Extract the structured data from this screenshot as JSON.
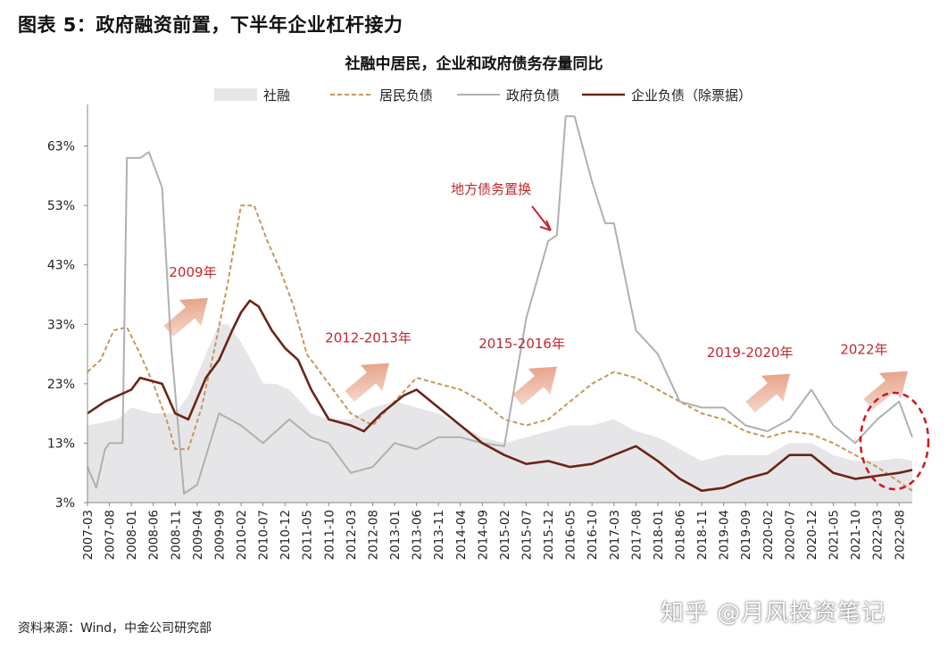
{
  "figure_title": "图表 5：政府融资前置，下半年企业杠杆接力",
  "source": "资料来源：Wind，中金公司研究部",
  "watermark": "知乎 @月风投资笔记",
  "colors": {
    "area": "#e6e6e9",
    "household": "#c8975a",
    "government": "#b0b0b0",
    "corporate": "#6b2418",
    "annotation": "#c0282d",
    "arrow": "#e08c6c",
    "circle": "#d0161b"
  },
  "chart_data": {
    "type": "line",
    "title": "社融中居民，企业和政府债务存量同比",
    "ylim": [
      3,
      70
    ],
    "y_ticks": [
      3,
      13,
      23,
      33,
      43,
      53,
      63
    ],
    "y_tick_labels": [
      "3%",
      "13%",
      "23%",
      "33%",
      "43%",
      "53%",
      "63%"
    ],
    "x_tick_labels": [
      "2007-03",
      "2007-08",
      "2008-01",
      "2008-06",
      "2008-11",
      "2009-04",
      "2009-09",
      "2010-02",
      "2010-07",
      "2010-12",
      "2011-05",
      "2011-10",
      "2012-03",
      "2012-08",
      "2013-01",
      "2013-06",
      "2013-11",
      "2014-04",
      "2014-09",
      "2015-02",
      "2015-07",
      "2015-12",
      "2016-05",
      "2016-10",
      "2017-03",
      "2017-08",
      "2018-01",
      "2018-06",
      "2018-11",
      "2019-04",
      "2019-09",
      "2020-02",
      "2020-07",
      "2020-12",
      "2021-05",
      "2021-10",
      "2022-03",
      "2022-08"
    ],
    "x_start": "2007-03",
    "x_end": "2022-11",
    "legend_position": "top",
    "series": [
      {
        "name": "社融",
        "style": "area",
        "points": [
          [
            "2007-03",
            16
          ],
          [
            "2007-10",
            17
          ],
          [
            "2008-01",
            19
          ],
          [
            "2008-06",
            18
          ],
          [
            "2008-11",
            18
          ],
          [
            "2009-02",
            21
          ],
          [
            "2009-06",
            28
          ],
          [
            "2009-09",
            33
          ],
          [
            "2009-11",
            33
          ],
          [
            "2010-02",
            30
          ],
          [
            "2010-05",
            26
          ],
          [
            "2010-07",
            23
          ],
          [
            "2010-10",
            23
          ],
          [
            "2011-01",
            22
          ],
          [
            "2011-06",
            18
          ],
          [
            "2011-10",
            17
          ],
          [
            "2012-03",
            17
          ],
          [
            "2012-08",
            19
          ],
          [
            "2013-01",
            20
          ],
          [
            "2013-06",
            19
          ],
          [
            "2013-11",
            18
          ],
          [
            "2014-04",
            16
          ],
          [
            "2014-09",
            14
          ],
          [
            "2015-02",
            13
          ],
          [
            "2015-07",
            14
          ],
          [
            "2015-12",
            15
          ],
          [
            "2016-05",
            16
          ],
          [
            "2016-10",
            16
          ],
          [
            "2017-03",
            17
          ],
          [
            "2017-08",
            15
          ],
          [
            "2018-01",
            14
          ],
          [
            "2018-06",
            12
          ],
          [
            "2018-11",
            10
          ],
          [
            "2019-04",
            11
          ],
          [
            "2019-09",
            11
          ],
          [
            "2020-02",
            11
          ],
          [
            "2020-07",
            13
          ],
          [
            "2020-12",
            13
          ],
          [
            "2021-05",
            11
          ],
          [
            "2021-10",
            10
          ],
          [
            "2022-03",
            10
          ],
          [
            "2022-08",
            10.5
          ],
          [
            "2022-11",
            10
          ]
        ]
      },
      {
        "name": "居民负债",
        "style": "dashed",
        "points": [
          [
            "2007-03",
            25
          ],
          [
            "2007-06",
            27
          ],
          [
            "2007-09",
            32
          ],
          [
            "2007-12",
            32.5
          ],
          [
            "2008-03",
            28
          ],
          [
            "2008-06",
            23
          ],
          [
            "2008-09",
            17
          ],
          [
            "2008-11",
            12
          ],
          [
            "2009-02",
            12
          ],
          [
            "2009-05",
            19
          ],
          [
            "2009-08",
            29
          ],
          [
            "2009-11",
            40
          ],
          [
            "2010-02",
            53
          ],
          [
            "2010-05",
            53
          ],
          [
            "2010-08",
            47
          ],
          [
            "2010-11",
            42
          ],
          [
            "2011-02",
            36
          ],
          [
            "2011-05",
            28
          ],
          [
            "2011-08",
            25
          ],
          [
            "2011-11",
            22
          ],
          [
            "2012-03",
            18
          ],
          [
            "2012-08",
            16
          ],
          [
            "2013-01",
            20
          ],
          [
            "2013-06",
            24
          ],
          [
            "2013-11",
            23
          ],
          [
            "2014-04",
            22
          ],
          [
            "2014-09",
            20
          ],
          [
            "2015-02",
            17
          ],
          [
            "2015-07",
            16
          ],
          [
            "2015-12",
            17
          ],
          [
            "2016-05",
            20
          ],
          [
            "2016-10",
            23
          ],
          [
            "2017-03",
            25
          ],
          [
            "2017-08",
            24
          ],
          [
            "2018-01",
            22
          ],
          [
            "2018-06",
            20
          ],
          [
            "2018-11",
            18
          ],
          [
            "2019-04",
            17
          ],
          [
            "2019-09",
            15
          ],
          [
            "2020-02",
            14
          ],
          [
            "2020-07",
            15
          ],
          [
            "2020-12",
            14.5
          ],
          [
            "2021-05",
            13
          ],
          [
            "2021-10",
            11
          ],
          [
            "2022-03",
            9
          ],
          [
            "2022-08",
            6.5
          ],
          [
            "2022-11",
            5
          ]
        ]
      },
      {
        "name": "政府负债",
        "style": "solid",
        "points": [
          [
            "2007-03",
            9
          ],
          [
            "2007-05",
            5.5
          ],
          [
            "2007-07",
            12
          ],
          [
            "2007-08",
            13
          ],
          [
            "2007-11",
            13
          ],
          [
            "2007-12",
            61
          ],
          [
            "2008-03",
            61
          ],
          [
            "2008-05",
            62
          ],
          [
            "2008-08",
            56
          ],
          [
            "2008-10",
            30
          ],
          [
            "2009-01",
            4.5
          ],
          [
            "2009-04",
            6
          ],
          [
            "2009-09",
            18
          ],
          [
            "2010-02",
            16
          ],
          [
            "2010-07",
            13
          ],
          [
            "2011-01",
            17
          ],
          [
            "2011-06",
            14
          ],
          [
            "2011-10",
            13
          ],
          [
            "2012-03",
            8
          ],
          [
            "2012-08",
            9
          ],
          [
            "2013-01",
            13
          ],
          [
            "2013-06",
            12
          ],
          [
            "2013-11",
            14
          ],
          [
            "2014-04",
            14
          ],
          [
            "2014-09",
            13
          ],
          [
            "2015-02",
            12.5
          ],
          [
            "2015-07",
            34
          ],
          [
            "2015-12",
            47
          ],
          [
            "2016-02",
            48
          ],
          [
            "2016-04",
            68
          ],
          [
            "2016-06",
            68
          ],
          [
            "2016-10",
            57
          ],
          [
            "2017-01",
            50
          ],
          [
            "2017-03",
            50
          ],
          [
            "2017-08",
            32
          ],
          [
            "2018-01",
            28
          ],
          [
            "2018-06",
            20
          ],
          [
            "2018-11",
            19
          ],
          [
            "2019-04",
            19
          ],
          [
            "2019-09",
            16
          ],
          [
            "2020-02",
            15
          ],
          [
            "2020-07",
            17
          ],
          [
            "2020-12",
            22
          ],
          [
            "2021-05",
            16
          ],
          [
            "2021-10",
            13
          ],
          [
            "2022-03",
            17
          ],
          [
            "2022-08",
            20
          ],
          [
            "2022-11",
            14
          ]
        ]
      },
      {
        "name": "企业负债（除票据）",
        "style": "solid",
        "points": [
          [
            "2007-03",
            18
          ],
          [
            "2007-07",
            20
          ],
          [
            "2008-01",
            22
          ],
          [
            "2008-03",
            24
          ],
          [
            "2008-08",
            23
          ],
          [
            "2008-11",
            18
          ],
          [
            "2009-02",
            17
          ],
          [
            "2009-06",
            24
          ],
          [
            "2009-09",
            27
          ],
          [
            "2009-12",
            32
          ],
          [
            "2010-02",
            35
          ],
          [
            "2010-04",
            37
          ],
          [
            "2010-06",
            36
          ],
          [
            "2010-09",
            32
          ],
          [
            "2010-12",
            29
          ],
          [
            "2011-03",
            27
          ],
          [
            "2011-06",
            22
          ],
          [
            "2011-10",
            17
          ],
          [
            "2012-03",
            16
          ],
          [
            "2012-06",
            15
          ],
          [
            "2012-10",
            18
          ],
          [
            "2013-03",
            21
          ],
          [
            "2013-06",
            22
          ],
          [
            "2013-11",
            19
          ],
          [
            "2014-04",
            16
          ],
          [
            "2014-09",
            13
          ],
          [
            "2015-02",
            11
          ],
          [
            "2015-07",
            9.5
          ],
          [
            "2015-12",
            10
          ],
          [
            "2016-05",
            9
          ],
          [
            "2016-10",
            9.5
          ],
          [
            "2017-03",
            11
          ],
          [
            "2017-08",
            12.5
          ],
          [
            "2018-01",
            10
          ],
          [
            "2018-06",
            7
          ],
          [
            "2018-11",
            5
          ],
          [
            "2019-04",
            5.5
          ],
          [
            "2019-09",
            7
          ],
          [
            "2020-02",
            8
          ],
          [
            "2020-07",
            11
          ],
          [
            "2020-12",
            11
          ],
          [
            "2021-05",
            8
          ],
          [
            "2021-10",
            7
          ],
          [
            "2022-03",
            7.5
          ],
          [
            "2022-08",
            8
          ],
          [
            "2022-11",
            8.5
          ]
        ]
      }
    ],
    "annotations": [
      {
        "text": "2009年",
        "x": "2009-03",
        "y": 41
      },
      {
        "text": "2012-2013年",
        "x": "2012-07",
        "y": 30
      },
      {
        "text": "2015-2016年",
        "x": "2015-06",
        "y": 29
      },
      {
        "text": "2019-2020年",
        "x": "2019-10",
        "y": 27.5
      },
      {
        "text": "2022年",
        "x": "2021-12",
        "y": 28
      },
      {
        "text": "地方债务置换",
        "x": "2014-11",
        "y": 55
      }
    ]
  }
}
